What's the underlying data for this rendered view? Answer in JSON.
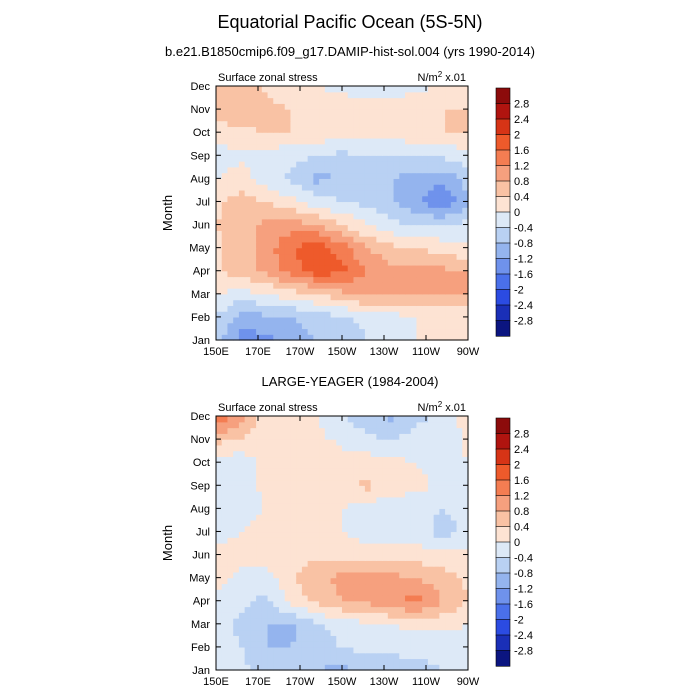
{
  "title": "Equatorial Pacific Ocean (5S-5N)",
  "colorbar": {
    "labels": [
      "2.8",
      "2.4",
      "2",
      "1.6",
      "1.2",
      "0.8",
      "0.4",
      "0",
      "-0.4",
      "-0.8",
      "-1.2",
      "-1.6",
      "-2",
      "-2.4",
      "-2.8"
    ],
    "colors": [
      "#8c0b0b",
      "#b0140f",
      "#d63416",
      "#ee5a2b",
      "#f47d52",
      "#f6a07e",
      "#f9c2a4",
      "#fde3d3",
      "#dde9f7",
      "#b9d1f3",
      "#94b4ee",
      "#6f92ec",
      "#4a70ea",
      "#2b4be2",
      "#1a2fb7",
      "#0b1580"
    ]
  },
  "chart_data": [
    {
      "type": "heatmap",
      "subtitle": "b.e21.B1850cmip6.f09_g17.DAMIP-hist-sol.004 (yrs 1990-2014)",
      "left_label": "Surface zonal stress",
      "right_label_base": "N/m",
      "right_label_exp": "2",
      "right_label_tail": " x.01",
      "ylabel": "Month",
      "x_ticks": [
        "150E",
        "170E",
        "170W",
        "150W",
        "130W",
        "110W",
        "90W"
      ],
      "y_ticks": [
        "Jan",
        "Feb",
        "Mar",
        "Apr",
        "May",
        "Jun",
        "Jul",
        "Aug",
        "Sep",
        "Oct",
        "Nov",
        "Dec"
      ],
      "values": [
        [
          -0.6,
          -1.4,
          -1.3,
          -1.0,
          -0.8,
          -0.6,
          -0.4,
          -0.2,
          0.0,
          0.1,
          0.2
        ],
        [
          -0.4,
          -1.0,
          -0.9,
          -0.8,
          -0.6,
          -0.5,
          -0.3,
          -0.2,
          0.0,
          0.1,
          0.1
        ],
        [
          0.1,
          -0.2,
          0.0,
          0.2,
          0.4,
          0.7,
          0.9,
          0.9,
          0.9,
          0.9,
          0.8
        ],
        [
          0.3,
          0.6,
          0.9,
          1.4,
          1.8,
          1.7,
          1.2,
          0.9,
          0.9,
          0.9,
          0.8
        ],
        [
          0.3,
          0.6,
          1.0,
          1.6,
          1.9,
          1.4,
          0.8,
          0.5,
          0.4,
          0.2,
          0.1
        ],
        [
          0.4,
          0.7,
          0.9,
          1.0,
          0.8,
          0.4,
          0.0,
          -0.3,
          -0.4,
          -0.4,
          -0.3
        ],
        [
          0.3,
          0.6,
          0.4,
          0.1,
          -0.2,
          -0.4,
          -0.5,
          -0.8,
          -1.1,
          -1.6,
          -0.9
        ],
        [
          0.0,
          0.2,
          -0.2,
          -0.5,
          -0.9,
          -0.8,
          -0.6,
          -0.8,
          -1.0,
          -1.1,
          -0.6
        ],
        [
          -0.2,
          -0.1,
          -0.2,
          -0.3,
          -0.4,
          -0.5,
          -0.4,
          -0.4,
          -0.4,
          -0.3,
          -0.2
        ],
        [
          0.2,
          0.3,
          0.4,
          0.4,
          0.3,
          0.2,
          0.2,
          0.2,
          0.3,
          0.4,
          0.4
        ],
        [
          0.6,
          0.7,
          0.6,
          0.4,
          0.3,
          0.2,
          0.2,
          0.3,
          0.4,
          0.4,
          0.4
        ],
        [
          0.5,
          0.6,
          0.3,
          0.0,
          0.0,
          -0.1,
          -0.2,
          -0.3,
          -0.1,
          0.0,
          0.1
        ]
      ]
    },
    {
      "type": "heatmap",
      "subtitle": "LARGE-YEAGER (1984-2004)",
      "left_label": "Surface zonal stress",
      "right_label_base": "N/m",
      "right_label_exp": "2",
      "right_label_tail": " x.01",
      "ylabel": "Month",
      "x_ticks": [
        "150E",
        "170E",
        "170W",
        "150W",
        "130W",
        "110W",
        "90W"
      ],
      "y_ticks": [
        "Jan",
        "Feb",
        "Mar",
        "Apr",
        "May",
        "Jun",
        "Jul",
        "Aug",
        "Sep",
        "Oct",
        "Nov",
        "Dec"
      ],
      "values": [
        [
          -0.1,
          -0.3,
          -0.6,
          -0.8,
          -0.8,
          -0.9,
          -0.6,
          -0.8,
          -0.6,
          -0.4,
          -0.2
        ],
        [
          -0.2,
          -0.4,
          -0.8,
          -0.8,
          -0.6,
          -0.4,
          -0.3,
          -0.2,
          -0.2,
          -0.2,
          -0.1
        ],
        [
          -0.2,
          -0.5,
          -0.8,
          -0.9,
          -0.5,
          -0.2,
          -0.1,
          0.0,
          0.1,
          0.1,
          0.0
        ],
        [
          -0.1,
          -0.3,
          -0.5,
          0.2,
          0.5,
          0.8,
          0.9,
          1.2,
          1.3,
          0.8,
          0.4
        ],
        [
          0.1,
          -0.1,
          -0.2,
          0.3,
          0.7,
          0.9,
          0.9,
          0.9,
          0.8,
          0.6,
          0.3
        ],
        [
          0.1,
          0.1,
          0.2,
          0.3,
          0.3,
          0.3,
          0.3,
          0.3,
          0.2,
          0.1,
          0.1
        ],
        [
          -0.1,
          0.0,
          0.1,
          0.1,
          0.2,
          0.0,
          -0.3,
          -0.3,
          -0.2,
          -0.6,
          -0.3
        ],
        [
          -0.2,
          -0.1,
          0.0,
          0.1,
          0.1,
          0.0,
          -0.2,
          -0.3,
          -0.2,
          -0.4,
          -0.2
        ],
        [
          -0.3,
          -0.2,
          0.1,
          0.2,
          0.2,
          0.2,
          0.5,
          0.2,
          0.1,
          -0.1,
          0.0
        ],
        [
          -0.2,
          -0.3,
          0.2,
          0.3,
          0.3,
          0.2,
          0.2,
          0.1,
          0.0,
          -0.2,
          0.0
        ],
        [
          0.5,
          0.4,
          0.1,
          0.2,
          0.1,
          -0.1,
          -0.3,
          -0.4,
          -0.2,
          -0.3,
          0.1
        ],
        [
          1.6,
          0.9,
          0.2,
          0.1,
          0.0,
          -0.3,
          -0.7,
          -0.9,
          -0.5,
          -0.3,
          0.2
        ]
      ]
    }
  ]
}
